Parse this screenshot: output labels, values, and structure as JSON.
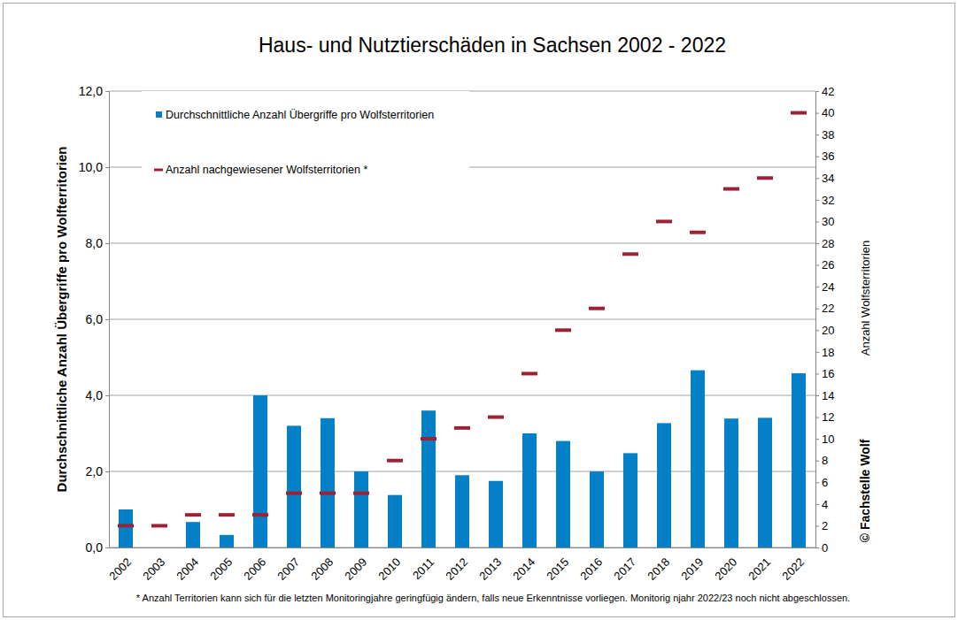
{
  "chart_data": {
    "type": "bar",
    "title": "Haus- und Nutztierschäden in Sachsen 2002 - 2022",
    "y_label": "Durchschnittliche Anzahl Übergriffe pro Wolfterritorien",
    "y2_label": "Anzahl Wolfsterritorien",
    "credit": "© Fachstelle Wolf",
    "footnote": "* Anzahl Territorien kann sich für die letzten Monitoringjahre geringfügig ändern, falls neue Erkenntnisse vorliegen. Monitorig njahr 2022/23 noch nicht abgeschlossen.",
    "categories": [
      "2002",
      "2003",
      "2004",
      "2005",
      "2006",
      "2007",
      "2008",
      "2009",
      "2010",
      "2011",
      "2012",
      "2013",
      "2014",
      "2015",
      "2016",
      "2017",
      "2018",
      "2019",
      "2020",
      "2021",
      "2022"
    ],
    "series": [
      {
        "name": "Durchschnittliche Anzahl Übergriffe pro Wolfsterritorien",
        "type": "bar",
        "color": "#0481c6",
        "values": [
          1.0,
          0,
          0.67,
          0.33,
          4.0,
          3.2,
          3.4,
          2.0,
          1.38,
          3.6,
          1.9,
          1.75,
          3.0,
          2.8,
          2.0,
          2.48,
          3.27,
          4.66,
          3.39,
          3.41,
          4.58
        ]
      },
      {
        "name": "Anzahl nachgewiesener Wolfsterritorien *",
        "type": "line",
        "marker": "dash",
        "line_style": "none",
        "axis": "y2",
        "color": "#9b2335",
        "values": [
          2,
          2,
          3,
          3,
          3,
          5,
          5,
          5,
          8,
          10,
          11,
          12,
          16,
          20,
          22,
          27,
          30,
          29,
          33,
          34,
          40
        ]
      }
    ],
    "ylim": [
      0,
      12
    ],
    "yticks": [
      {
        "value": 0,
        "label": "0,0"
      },
      {
        "value": 2,
        "label": "2,0"
      },
      {
        "value": 4,
        "label": "4,0"
      },
      {
        "value": 6,
        "label": "6,0"
      },
      {
        "value": 8,
        "label": "8,0"
      },
      {
        "value": 10,
        "label": "10,0"
      },
      {
        "value": 12,
        "label": "12,0"
      }
    ],
    "y2lim": [
      0,
      42
    ],
    "y2ticks": [
      0,
      2,
      4,
      6,
      8,
      10,
      12,
      14,
      16,
      18,
      20,
      22,
      24,
      26,
      28,
      30,
      32,
      34,
      36,
      38,
      40,
      42
    ],
    "grid": true,
    "legend": "top-left"
  }
}
